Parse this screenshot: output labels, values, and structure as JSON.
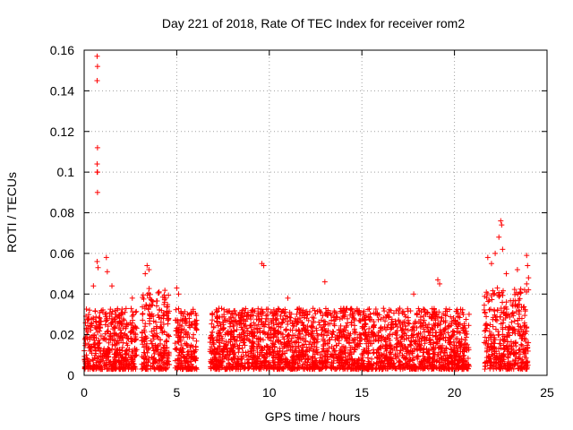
{
  "chart_data": {
    "type": "scatter",
    "title": "Day 221 of 2018, Rate Of TEC Index for receiver rom2",
    "xlabel": "GPS time / hours",
    "ylabel": "ROTI / TECUs",
    "xlim": [
      0,
      25
    ],
    "ylim": [
      0,
      0.16
    ],
    "xticks": [
      0,
      5,
      10,
      15,
      20,
      25
    ],
    "yticks": [
      0,
      0.02,
      0.04,
      0.06,
      0.08,
      0.1,
      0.12,
      0.14,
      0.16
    ],
    "ytick_labels": [
      "0",
      "0.02",
      "0.04",
      "0.06",
      "0.08",
      "0.1",
      "0.12",
      "0.14",
      "0.16"
    ],
    "grid": true,
    "marker": "+",
    "color": "#ff0000",
    "series": [
      {
        "name": "ROTI",
        "segments": [
          {
            "x_start": 0.0,
            "x_end": 2.85,
            "typical_max": 0.03
          },
          {
            "x_start": 3.1,
            "x_end": 4.6,
            "typical_max": 0.04
          },
          {
            "x_start": 4.9,
            "x_end": 6.1,
            "typical_max": 0.03
          },
          {
            "x_start": 6.8,
            "x_end": 20.8,
            "typical_max": 0.03
          },
          {
            "x_start": 21.6,
            "x_end": 24.0,
            "typical_max": 0.04
          }
        ],
        "notable_points": [
          {
            "x": 0.7,
            "y": 0.157
          },
          {
            "x": 0.72,
            "y": 0.152
          },
          {
            "x": 0.7,
            "y": 0.145
          },
          {
            "x": 0.72,
            "y": 0.112
          },
          {
            "x": 0.7,
            "y": 0.104
          },
          {
            "x": 0.72,
            "y": 0.1
          },
          {
            "x": 0.7,
            "y": 0.1
          },
          {
            "x": 0.72,
            "y": 0.09
          },
          {
            "x": 0.7,
            "y": 0.056
          },
          {
            "x": 0.75,
            "y": 0.053
          },
          {
            "x": 1.2,
            "y": 0.058
          },
          {
            "x": 1.25,
            "y": 0.051
          },
          {
            "x": 1.5,
            "y": 0.044
          },
          {
            "x": 0.5,
            "y": 0.044
          },
          {
            "x": 2.6,
            "y": 0.038
          },
          {
            "x": 3.4,
            "y": 0.054
          },
          {
            "x": 3.5,
            "y": 0.052
          },
          {
            "x": 3.3,
            "y": 0.05
          },
          {
            "x": 5.0,
            "y": 0.043
          },
          {
            "x": 5.1,
            "y": 0.04
          },
          {
            "x": 9.6,
            "y": 0.055
          },
          {
            "x": 9.7,
            "y": 0.054
          },
          {
            "x": 11.0,
            "y": 0.038
          },
          {
            "x": 13.0,
            "y": 0.046
          },
          {
            "x": 17.8,
            "y": 0.04
          },
          {
            "x": 19.1,
            "y": 0.047
          },
          {
            "x": 19.2,
            "y": 0.045
          },
          {
            "x": 21.8,
            "y": 0.058
          },
          {
            "x": 22.0,
            "y": 0.055
          },
          {
            "x": 22.2,
            "y": 0.06
          },
          {
            "x": 22.4,
            "y": 0.068
          },
          {
            "x": 22.5,
            "y": 0.076
          },
          {
            "x": 22.55,
            "y": 0.074
          },
          {
            "x": 22.6,
            "y": 0.062
          },
          {
            "x": 22.8,
            "y": 0.05
          },
          {
            "x": 23.4,
            "y": 0.052
          },
          {
            "x": 23.9,
            "y": 0.059
          },
          {
            "x": 23.95,
            "y": 0.054
          },
          {
            "x": 24.0,
            "y": 0.048
          },
          {
            "x": 23.9,
            "y": 0.045
          }
        ]
      }
    ]
  }
}
